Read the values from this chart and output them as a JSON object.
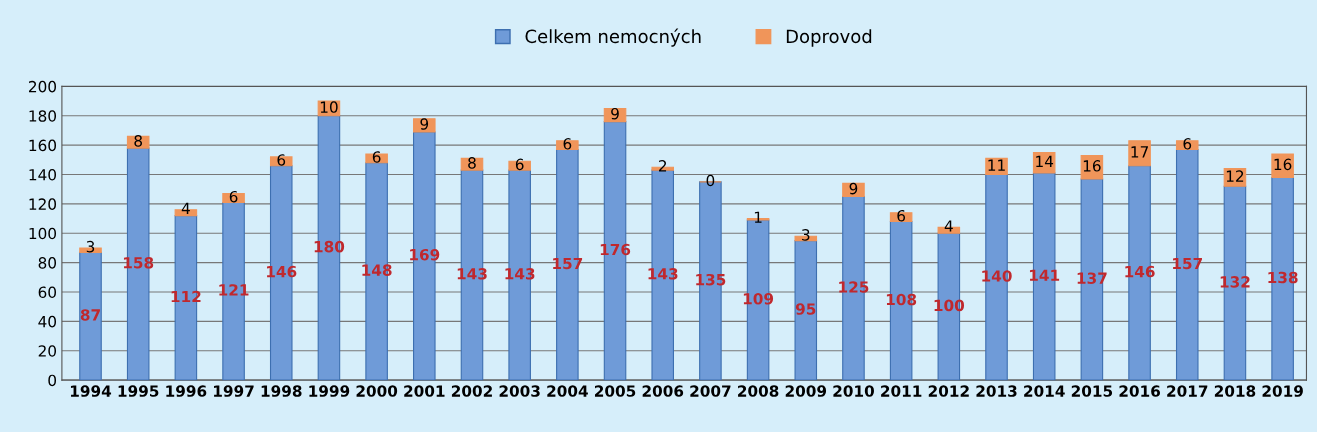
{
  "chart_data": {
    "type": "bar",
    "stacked": true,
    "categories": [
      "1994",
      "1995",
      "1996",
      "1997",
      "1998",
      "1999",
      "2000",
      "2001",
      "2002",
      "2003",
      "2004",
      "2005",
      "2006",
      "2007",
      "2008",
      "2009",
      "2010",
      "2011",
      "2012",
      "2013",
      "2014",
      "2015",
      "2016",
      "2017",
      "2018",
      "2019"
    ],
    "series": [
      {
        "name": "Celkem nemocných",
        "color": "#6f9bd8",
        "values": [
          87,
          158,
          112,
          121,
          146,
          180,
          148,
          169,
          143,
          143,
          157,
          176,
          143,
          135,
          109,
          95,
          125,
          108,
          100,
          140,
          141,
          137,
          146,
          157,
          132,
          138
        ]
      },
      {
        "name": "Doprovod",
        "color": "#f0955a",
        "values": [
          3,
          8,
          4,
          6,
          6,
          10,
          6,
          9,
          8,
          6,
          6,
          9,
          2,
          0,
          1,
          3,
          9,
          6,
          4,
          11,
          14,
          16,
          17,
          6,
          12,
          16
        ]
      }
    ],
    "ylim": [
      0,
      200
    ],
    "yticks": [
      0,
      20,
      40,
      60,
      80,
      100,
      120,
      140,
      160,
      180,
      200
    ],
    "grid": "y",
    "legend": "top",
    "data_labels": true
  }
}
